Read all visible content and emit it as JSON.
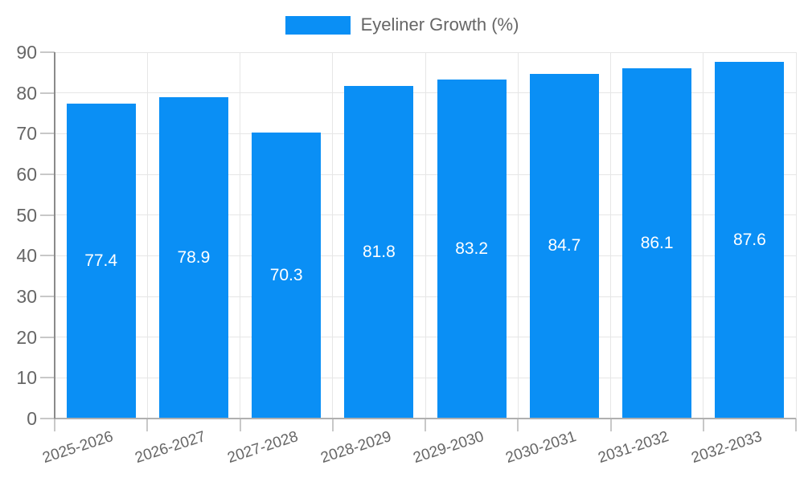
{
  "legend": {
    "label": "Eyeliner Growth (%)"
  },
  "chart_data": {
    "type": "bar",
    "title": "Eyeliner Growth (%)",
    "categories": [
      "2025-2026",
      "2026-2027",
      "2027-2028",
      "2028-2029",
      "2029-2030",
      "2030-2031",
      "2031-2032",
      "2032-2033"
    ],
    "values": [
      77.4,
      78.9,
      70.3,
      81.8,
      83.2,
      84.7,
      86.1,
      87.6
    ],
    "bar_value_labels": [
      "77.4",
      "78.9",
      "70.3",
      "81.8",
      "83.2",
      "84.7",
      "86.1",
      "87.6"
    ],
    "xlabel": "",
    "ylabel": "",
    "ylim": [
      0,
      90
    ],
    "yticks": [
      0,
      10,
      20,
      30,
      40,
      50,
      60,
      70,
      80,
      90
    ],
    "grid": true,
    "legend_position": "top-center",
    "x_label_rotation_deg": -18,
    "colors": {
      "bar": "#0a8ff5",
      "value_label": "#ffffff",
      "axis_label": "#666666",
      "gridline": "#e6e6e6",
      "y_axis_line": "#8a8a8a",
      "x_axis_line": "#b0b0b0",
      "tick": "#c8c8c8"
    }
  }
}
